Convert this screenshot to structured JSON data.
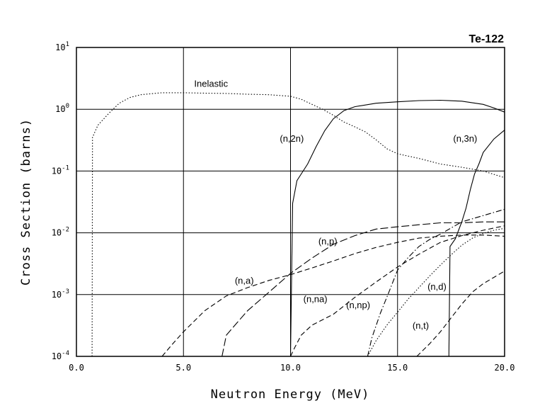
{
  "chart_data": {
    "type": "line",
    "title": "Te-122",
    "xlabel": "Neutron Energy (MeV)",
    "ylabel": "Cross Section (barns)",
    "xlim": [
      0,
      20
    ],
    "ylim": [
      0.0001,
      10
    ],
    "yscale": "log",
    "grid": true,
    "x_ticks": [
      {
        "value": 0,
        "label": "0.0"
      },
      {
        "value": 5,
        "label": "5.0"
      },
      {
        "value": 10,
        "label": "10.0"
      },
      {
        "value": 15,
        "label": "15.0"
      },
      {
        "value": 20,
        "label": "20.0"
      }
    ],
    "y_ticks": [
      {
        "value": 0.0001,
        "base": "10",
        "exp": "-4"
      },
      {
        "value": 0.001,
        "base": "10",
        "exp": "-3"
      },
      {
        "value": 0.01,
        "base": "10",
        "exp": "-2"
      },
      {
        "value": 0.1,
        "base": "10",
        "exp": "-1"
      },
      {
        "value": 1,
        "base": "10",
        "exp": "0"
      },
      {
        "value": 10,
        "base": "10",
        "exp": "1"
      }
    ],
    "series": [
      {
        "name": "Inelastic",
        "dash": "dotted",
        "label_at": [
          5.5,
          2.3
        ],
        "points": [
          [
            0.73,
            0.0001
          ],
          [
            0.75,
            0.35
          ],
          [
            0.85,
            0.42
          ],
          [
            1.0,
            0.55
          ],
          [
            1.5,
            0.85
          ],
          [
            2.0,
            1.25
          ],
          [
            2.5,
            1.55
          ],
          [
            3.0,
            1.72
          ],
          [
            4.0,
            1.85
          ],
          [
            5.0,
            1.85
          ],
          [
            6.0,
            1.82
          ],
          [
            7.0,
            1.8
          ],
          [
            8.0,
            1.75
          ],
          [
            9.0,
            1.72
          ],
          [
            10.0,
            1.62
          ],
          [
            10.5,
            1.45
          ],
          [
            11.0,
            1.2
          ],
          [
            11.5,
            1.0
          ],
          [
            12.0,
            0.8
          ],
          [
            12.5,
            0.62
          ],
          [
            13.0,
            0.52
          ],
          [
            13.5,
            0.43
          ],
          [
            14.0,
            0.32
          ],
          [
            14.5,
            0.23
          ],
          [
            15.0,
            0.19
          ],
          [
            16.0,
            0.16
          ],
          [
            17.0,
            0.13
          ],
          [
            18.0,
            0.115
          ],
          [
            19.0,
            0.1
          ],
          [
            20.0,
            0.078
          ]
        ]
      },
      {
        "name": "(n,2n)",
        "dash": "solid",
        "label_at": [
          9.5,
          0.3
        ],
        "points": [
          [
            10.0,
            0.0001
          ],
          [
            10.1,
            0.03
          ],
          [
            10.3,
            0.07
          ],
          [
            10.8,
            0.13
          ],
          [
            11.2,
            0.25
          ],
          [
            11.6,
            0.45
          ],
          [
            12.0,
            0.7
          ],
          [
            12.5,
            0.95
          ],
          [
            13.0,
            1.1
          ],
          [
            14.0,
            1.25
          ],
          [
            15.0,
            1.32
          ],
          [
            16.0,
            1.38
          ],
          [
            17.0,
            1.4
          ],
          [
            18.0,
            1.35
          ],
          [
            19.0,
            1.2
          ],
          [
            19.5,
            1.05
          ],
          [
            20.0,
            0.9
          ]
        ]
      },
      {
        "name": "(n,3n)",
        "dash": "solid",
        "label_at": [
          17.6,
          0.3
        ],
        "points": [
          [
            17.4,
            0.0001
          ],
          [
            17.45,
            0.006
          ],
          [
            17.7,
            0.008
          ],
          [
            18.0,
            0.015
          ],
          [
            18.2,
            0.025
          ],
          [
            18.4,
            0.05
          ],
          [
            18.6,
            0.09
          ],
          [
            18.8,
            0.13
          ],
          [
            19.0,
            0.2
          ],
          [
            19.5,
            0.33
          ],
          [
            20.0,
            0.46
          ]
        ]
      },
      {
        "name": "(n,p)",
        "dash": "long-dash",
        "label_at": [
          11.3,
          0.0065
        ],
        "points": [
          [
            6.8,
            0.0001
          ],
          [
            7.0,
            0.00022
          ],
          [
            7.5,
            0.00035
          ],
          [
            8.0,
            0.00055
          ],
          [
            9.0,
            0.0011
          ],
          [
            10.0,
            0.0022
          ],
          [
            11.0,
            0.0039
          ],
          [
            12.0,
            0.0065
          ],
          [
            13.0,
            0.009
          ],
          [
            14.0,
            0.0115
          ],
          [
            15.0,
            0.0125
          ],
          [
            16.0,
            0.0135
          ],
          [
            17.0,
            0.0145
          ],
          [
            18.0,
            0.0145
          ],
          [
            19.0,
            0.015
          ],
          [
            20.0,
            0.015
          ]
        ]
      },
      {
        "name": "(n,a)",
        "dash": "dashed",
        "label_at": [
          7.4,
          0.0015
        ],
        "points": [
          [
            4.0,
            0.0001
          ],
          [
            4.5,
            0.00016
          ],
          [
            5.0,
            0.00025
          ],
          [
            6.0,
            0.00055
          ],
          [
            7.0,
            0.00095
          ],
          [
            8.0,
            0.0013
          ],
          [
            9.0,
            0.0017
          ],
          [
            10.0,
            0.0021
          ],
          [
            11.0,
            0.0027
          ],
          [
            12.0,
            0.0035
          ],
          [
            13.0,
            0.0046
          ],
          [
            14.0,
            0.0058
          ],
          [
            15.0,
            0.007
          ],
          [
            16.0,
            0.0082
          ],
          [
            17.0,
            0.0088
          ],
          [
            18.0,
            0.0092
          ],
          [
            19.0,
            0.0092
          ],
          [
            20.0,
            0.0088
          ]
        ]
      },
      {
        "name": "(n,na)",
        "dash": "dashed",
        "label_at": [
          10.6,
          0.00075
        ],
        "points": [
          [
            10.0,
            0.0001
          ],
          [
            10.2,
            0.00014
          ],
          [
            10.5,
            0.00022
          ],
          [
            11.0,
            0.00032
          ],
          [
            12.0,
            0.00048
          ],
          [
            13.0,
            0.0009
          ],
          [
            14.0,
            0.0016
          ],
          [
            15.0,
            0.0028
          ],
          [
            16.0,
            0.0045
          ],
          [
            17.0,
            0.007
          ],
          [
            18.0,
            0.009
          ],
          [
            19.0,
            0.011
          ],
          [
            20.0,
            0.013
          ]
        ]
      },
      {
        "name": "(n,np)",
        "dash": "dash-dot",
        "label_at": [
          12.6,
          0.0006
        ],
        "points": [
          [
            13.6,
            0.0001
          ],
          [
            13.8,
            0.0002
          ],
          [
            14.2,
            0.0005
          ],
          [
            14.6,
            0.0011
          ],
          [
            15.0,
            0.0025
          ],
          [
            15.5,
            0.004
          ],
          [
            16.0,
            0.006
          ],
          [
            16.5,
            0.0078
          ],
          [
            17.0,
            0.0095
          ],
          [
            18.0,
            0.015
          ],
          [
            19.0,
            0.019
          ],
          [
            20.0,
            0.024
          ]
        ]
      },
      {
        "name": "(n,d)",
        "dash": "dotted",
        "label_at": [
          16.4,
          0.0012
        ],
        "points": [
          [
            13.6,
            0.0001
          ],
          [
            14.0,
            0.00018
          ],
          [
            14.5,
            0.00032
          ],
          [
            15.0,
            0.00052
          ],
          [
            15.5,
            0.00085
          ],
          [
            16.0,
            0.0013
          ],
          [
            16.5,
            0.002
          ],
          [
            17.0,
            0.003
          ],
          [
            17.5,
            0.0044
          ],
          [
            18.0,
            0.0063
          ],
          [
            18.5,
            0.0082
          ],
          [
            19.0,
            0.0098
          ],
          [
            19.5,
            0.011
          ],
          [
            20.0,
            0.0118
          ]
        ]
      },
      {
        "name": "(n,t)",
        "dash": "dashed",
        "label_at": [
          15.7,
          0.00028
        ],
        "points": [
          [
            15.9,
            0.0001
          ],
          [
            16.5,
            0.00016
          ],
          [
            17.0,
            0.00025
          ],
          [
            17.5,
            0.00042
          ],
          [
            18.0,
            0.0007
          ],
          [
            18.5,
            0.0011
          ],
          [
            19.0,
            0.0015
          ],
          [
            19.5,
            0.0019
          ],
          [
            20.0,
            0.0024
          ]
        ]
      }
    ]
  }
}
